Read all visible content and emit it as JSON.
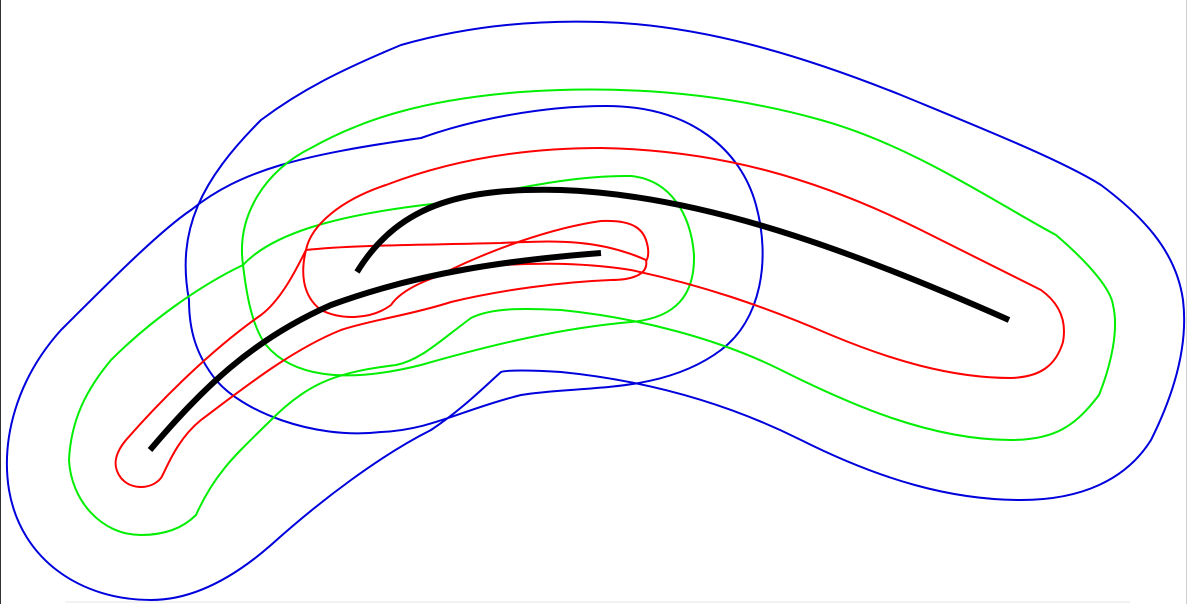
{
  "diagram": {
    "colors": {
      "background": "#ffffff",
      "curve": "#000000",
      "offset_inner": "#ff0000",
      "offset_middle": "#00ee00",
      "offset_outer": "#0000dd"
    },
    "curves": [
      {
        "id": "long-arc"
      },
      {
        "id": "short-arc"
      }
    ],
    "offset_levels": [
      "inner",
      "middle",
      "outer"
    ]
  }
}
